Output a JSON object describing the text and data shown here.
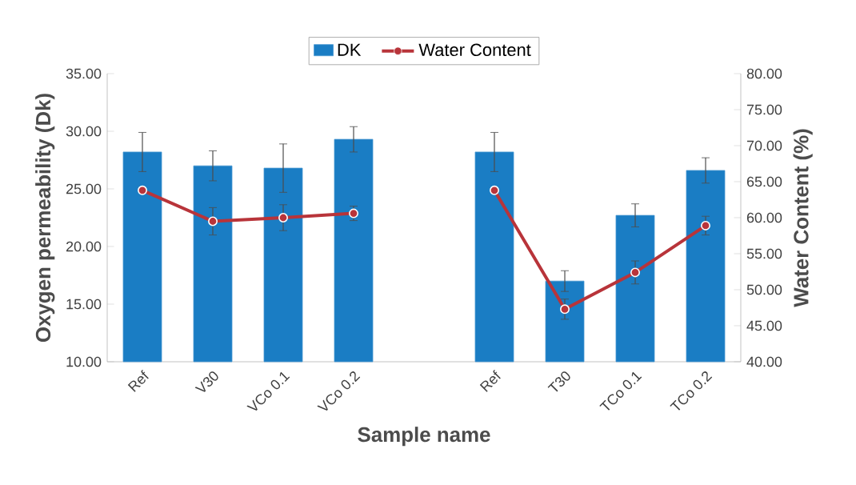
{
  "chart_data": {
    "type": "bar",
    "xlabel": "Sample name",
    "ylabel": "Oxygen permeability (Dk)",
    "y2label": "Water Content (%)",
    "categories": [
      "Ref",
      "V30",
      "VCo 0.1",
      "VCo 0.2",
      null,
      "Ref",
      "T30",
      "TCo 0.1",
      "TCo 0.2"
    ],
    "series": [
      {
        "name": "DK",
        "color": "#1a7dc4",
        "values": [
          28.2,
          27.0,
          26.8,
          29.3,
          null,
          28.2,
          17.0,
          22.7,
          26.6
        ],
        "errors": [
          1.7,
          1.3,
          2.1,
          1.1,
          null,
          1.7,
          0.9,
          1.0,
          1.1
        ]
      },
      {
        "name": "Water Content",
        "type": "line",
        "axis": "y2",
        "color": "#b8343a",
        "marker": "circle",
        "line_style": "solid",
        "values": [
          63.8,
          59.5,
          60.0,
          60.6,
          null,
          63.8,
          47.3,
          52.4,
          58.9
        ],
        "errors": [
          null,
          1.9,
          1.8,
          1.0,
          null,
          null,
          1.4,
          1.6,
          1.3
        ]
      }
    ],
    "ylim": [
      10,
      35
    ],
    "yticks": [
      {
        "value": 10,
        "label": "10.00"
      },
      {
        "value": 15,
        "label": "15.00"
      },
      {
        "value": 20,
        "label": "20.00"
      },
      {
        "value": 25,
        "label": "25.00"
      },
      {
        "value": 30,
        "label": "30.00"
      },
      {
        "value": 35,
        "label": "35.00"
      }
    ],
    "y2lim": [
      40,
      80
    ],
    "y2ticks": [
      {
        "value": 40,
        "label": "40.00"
      },
      {
        "value": 45,
        "label": "45.00"
      },
      {
        "value": 50,
        "label": "50.00"
      },
      {
        "value": 55,
        "label": "55.00"
      },
      {
        "value": 60,
        "label": "60.00"
      },
      {
        "value": 65,
        "label": "65.00"
      },
      {
        "value": 70,
        "label": "70.00"
      },
      {
        "value": 75,
        "label": "75.00"
      },
      {
        "value": 80,
        "label": "80.00"
      }
    ],
    "legend": "top",
    "grid": false
  }
}
